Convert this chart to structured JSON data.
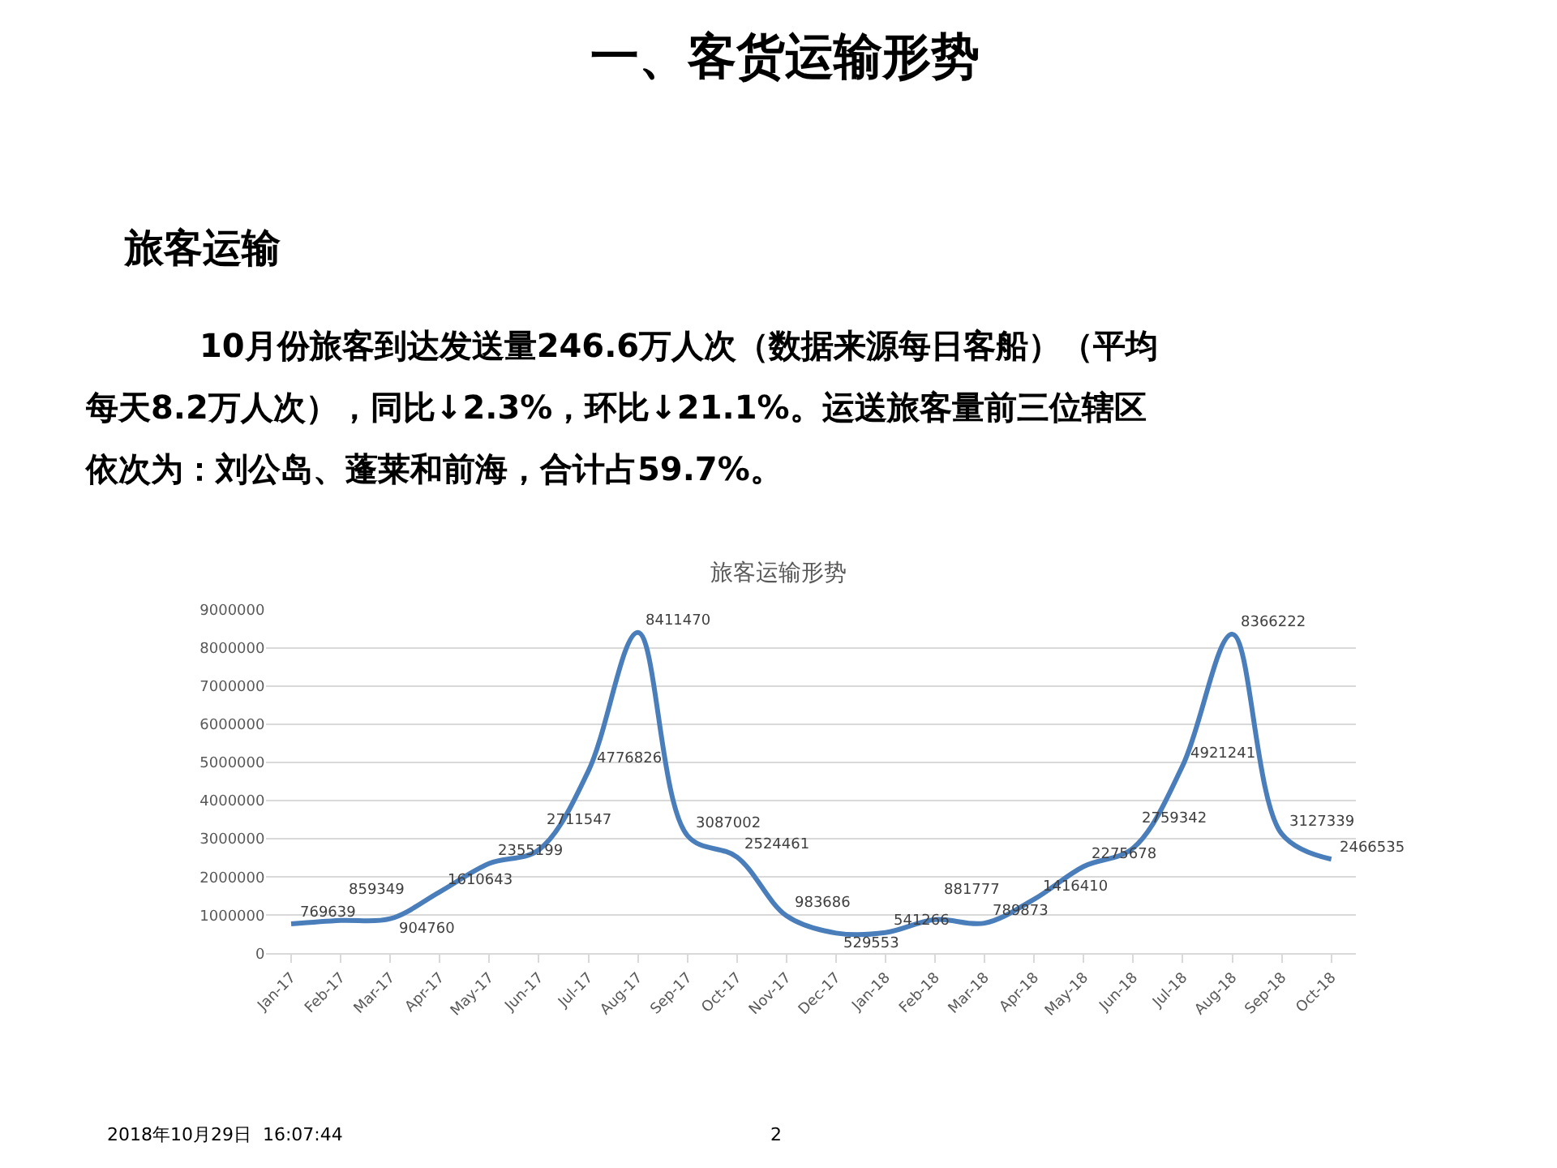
{
  "chart_data": {
    "type": "line",
    "title": "旅客运输形势",
    "annotations": [
      "一、客货运输形势",
      "旅客运输",
      "10月份旅客到达发送量246.6万人次（数据来源每日客船）（平均",
      "每天8.2万人次），同比↓2.3%，环比↓21.1%。运送旅客量前三位辖区",
      "依次为：刘公岛、蓬莱和前海，合计占59.7%。",
      "2018年10月29日  16:07:44",
      "2"
    ],
    "categories": [
      "Jan-17",
      "Feb-17",
      "Mar-17",
      "Apr-17",
      "May-17",
      "Jun-17",
      "Jul-17",
      "Aug-17",
      "Sep-17",
      "Oct-17",
      "Nov-17",
      "Dec-17",
      "Jan-18",
      "Feb-18",
      "Mar-18",
      "Apr-18",
      "May-18",
      "Jun-18",
      "Jul-18",
      "Aug-18",
      "Sep-18",
      "Oct-18"
    ],
    "series": [
      {
        "color": "#4a7ebb",
        "values": [
          769639,
          859349,
          904760,
          1610643,
          2355199,
          2711547,
          4776826,
          8411470,
          3087002,
          2524461,
          983686,
          529553,
          541266,
          881777,
          789873,
          1416410,
          2275678,
          2759342,
          4921241,
          8366222,
          3127339,
          2466535
        ]
      }
    ],
    "ylim": [
      0,
      9000000
    ],
    "yticks": [
      0,
      1000000,
      2000000,
      3000000,
      4000000,
      5000000,
      6000000,
      7000000,
      8000000,
      9000000
    ],
    "grid": "y",
    "data_labels": true,
    "marker": "none",
    "line_style": "solid"
  }
}
